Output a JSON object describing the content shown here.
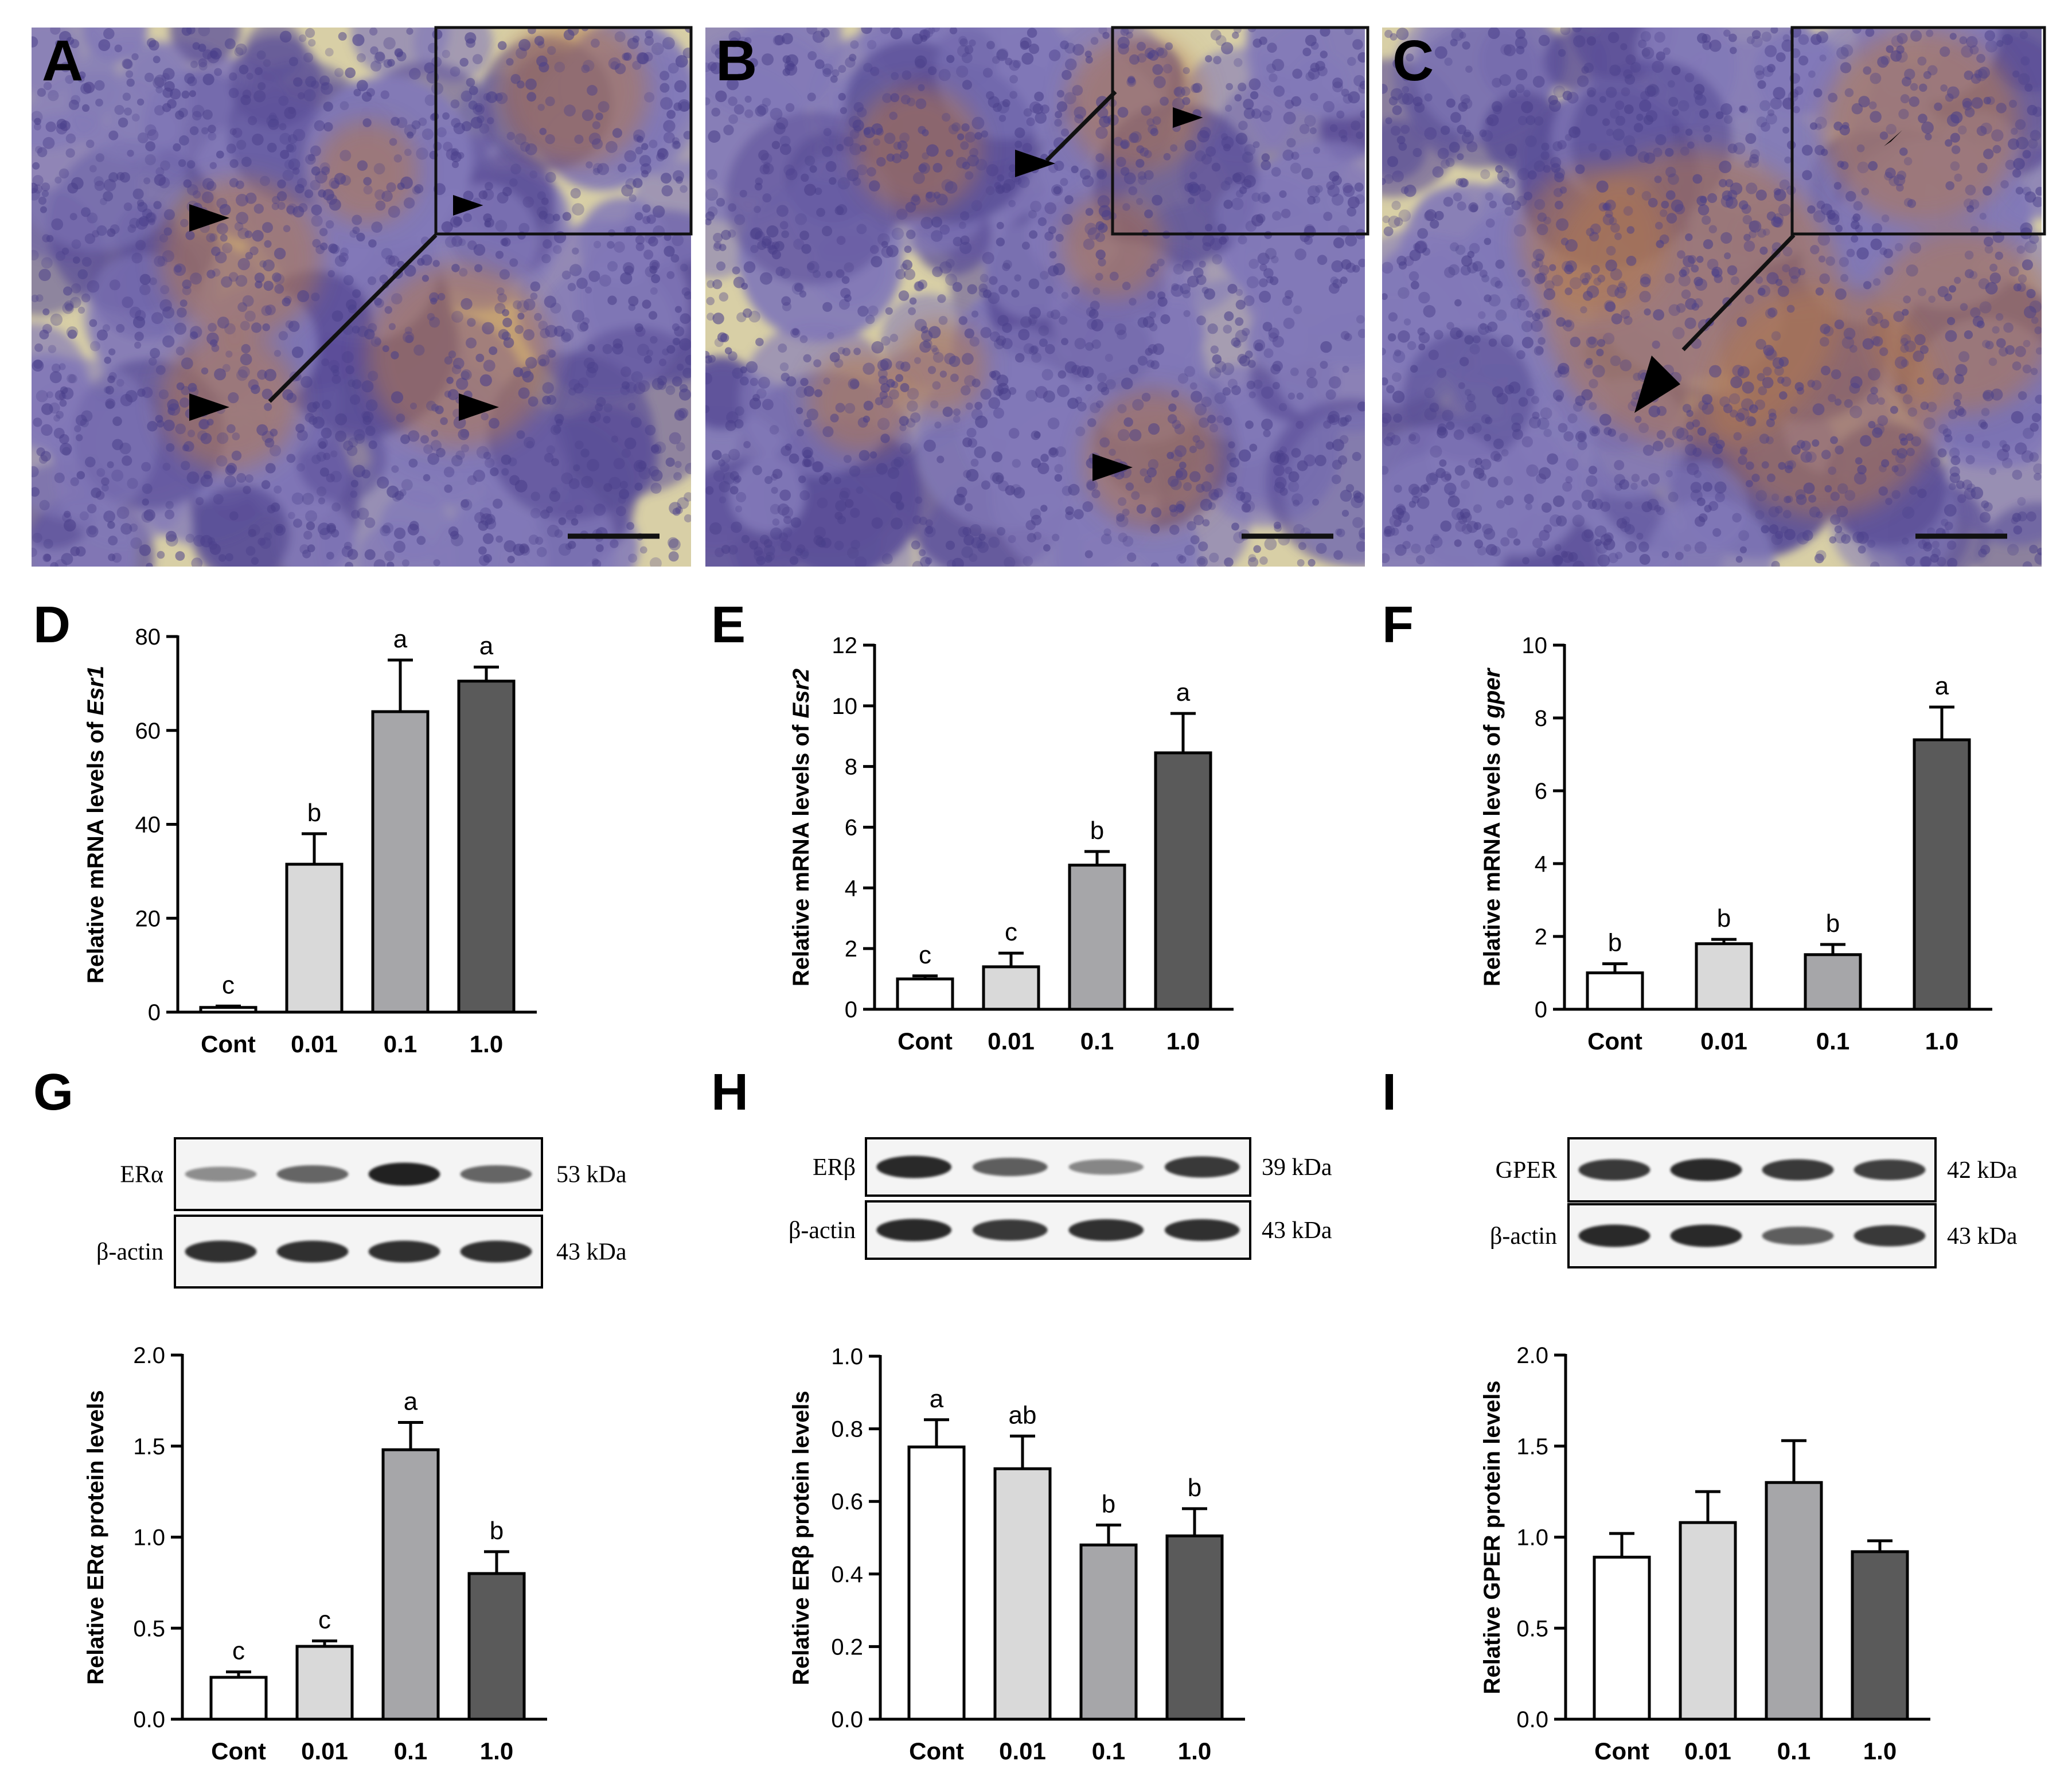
{
  "colors": {
    "bar_cont": "#ffffff",
    "bar_001": "#d9d9d9",
    "bar_01": "#a6a6a9",
    "bar_10": "#5a5a5a",
    "micro_base": "#8279b8",
    "micro_dark": "#5b4f98",
    "micro_stroma": "#d8cfa6",
    "micro_brown": "#b27a4d",
    "band": "#161616"
  },
  "micrographs": [
    {
      "label": "A"
    },
    {
      "label": "B"
    },
    {
      "label": "C"
    }
  ],
  "westerns": [
    {
      "label": "G",
      "target": "ERα",
      "target_kda": "53 kDa",
      "ref": "β-actin",
      "ref_kda": "43 kDa",
      "target_band_intensity": [
        0.3,
        0.55,
        1.0,
        0.55
      ],
      "ref_band_intensity": [
        0.9,
        0.9,
        0.9,
        0.9
      ]
    },
    {
      "label": "H",
      "target": "ERβ",
      "target_kda": "39 kDa",
      "ref": "β-actin",
      "ref_kda": "43 kDa",
      "target_band_intensity": [
        0.95,
        0.6,
        0.35,
        0.85
      ],
      "ref_band_intensity": [
        0.95,
        0.85,
        0.9,
        0.9
      ]
    },
    {
      "label": "I",
      "target": "GPER",
      "target_kda": "42 kDa",
      "ref": "β-actin",
      "ref_kda": "43 kDa",
      "target_band_intensity": [
        0.85,
        0.95,
        0.85,
        0.8
      ],
      "ref_band_intensity": [
        0.95,
        0.95,
        0.6,
        0.85
      ]
    }
  ],
  "chart_data": [
    {
      "label": "D",
      "type": "bar",
      "ylabel": "Relative mRNA levels of ",
      "ylabel_italic": "Esr1",
      "categories": [
        "Cont",
        "0.01",
        "0.1",
        "1.0"
      ],
      "ylim": [
        0,
        80
      ],
      "yticks": [
        "0",
        "20",
        "40",
        "60",
        "80"
      ],
      "values": [
        1,
        31.5,
        64,
        70.5
      ],
      "errors": [
        0.3,
        6.5,
        11,
        3
      ],
      "letters": [
        "c",
        "b",
        "a",
        "a"
      ]
    },
    {
      "label": "E",
      "type": "bar",
      "ylabel": "Relative mRNA levels of ",
      "ylabel_italic": "Esr2",
      "categories": [
        "Cont",
        "0.01",
        "0.1",
        "1.0"
      ],
      "ylim": [
        0,
        12
      ],
      "yticks": [
        "0",
        "2",
        "4",
        "6",
        "8",
        "10",
        "12"
      ],
      "values": [
        1.0,
        1.4,
        4.75,
        8.45
      ],
      "errors": [
        0.1,
        0.45,
        0.45,
        1.3
      ],
      "letters": [
        "c",
        "c",
        "b",
        "a"
      ]
    },
    {
      "label": "F",
      "type": "bar",
      "ylabel": "Relative mRNA levels of ",
      "ylabel_italic": "gper",
      "categories": [
        "Cont",
        "0.01",
        "0.1",
        "1.0"
      ],
      "ylim": [
        0,
        10
      ],
      "yticks": [
        "0",
        "2",
        "4",
        "6",
        "8",
        "10"
      ],
      "values": [
        1.0,
        1.8,
        1.5,
        7.4
      ],
      "errors": [
        0.25,
        0.12,
        0.28,
        0.9
      ],
      "letters": [
        "b",
        "b",
        "b",
        "a"
      ]
    },
    {
      "label": "G",
      "type": "bar",
      "ylabel": "Relative ERα protein levels",
      "ylabel_italic": "",
      "categories": [
        "Cont",
        "0.01",
        "0.1",
        "1.0"
      ],
      "ylim": [
        0,
        2.0
      ],
      "yticks": [
        "0.0",
        "0.5",
        "1.0",
        "1.5",
        "2.0"
      ],
      "values": [
        0.23,
        0.4,
        1.48,
        0.8
      ],
      "errors": [
        0.03,
        0.03,
        0.15,
        0.12
      ],
      "letters": [
        "c",
        "c",
        "a",
        "b"
      ]
    },
    {
      "label": "H",
      "type": "bar",
      "ylabel": "Relative ERβ protein levels",
      "ylabel_italic": "",
      "categories": [
        "Cont",
        "0.01",
        "0.1",
        "1.0"
      ],
      "ylim": [
        0,
        1.0
      ],
      "yticks": [
        "0.0",
        "0.2",
        "0.4",
        "0.6",
        "0.8",
        "1.0"
      ],
      "values": [
        0.75,
        0.69,
        0.48,
        0.505
      ],
      "errors": [
        0.075,
        0.09,
        0.055,
        0.075
      ],
      "letters": [
        "a",
        "ab",
        "b",
        "b"
      ]
    },
    {
      "label": "I",
      "type": "bar",
      "ylabel": "Relative GPER protein levels",
      "ylabel_italic": "",
      "categories": [
        "Cont",
        "0.01",
        "0.1",
        "1.0"
      ],
      "ylim": [
        0,
        2.0
      ],
      "yticks": [
        "0.0",
        "0.5",
        "1.0",
        "1.5",
        "2.0"
      ],
      "values": [
        0.89,
        1.08,
        1.3,
        0.92
      ],
      "errors": [
        0.13,
        0.17,
        0.23,
        0.06
      ],
      "letters": [
        "",
        "",
        "",
        ""
      ]
    }
  ]
}
